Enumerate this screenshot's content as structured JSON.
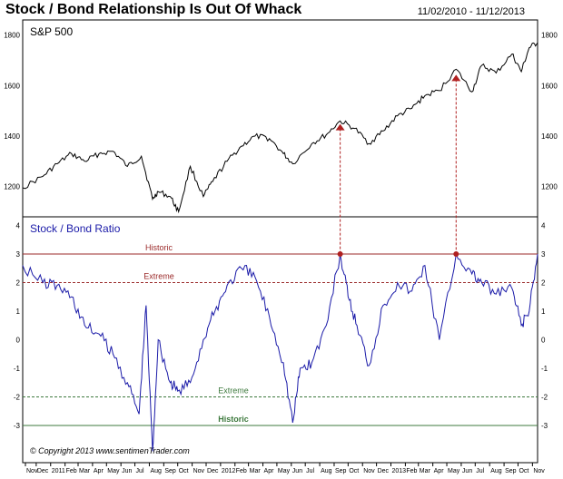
{
  "header": {
    "title": "Stock / Bond Relationship Is Out Of Whack",
    "date_range": "11/02/2010 - 11/12/2013"
  },
  "copyright": "© Copyright 2013   www.sentimenTrader.com",
  "colors": {
    "sp500_line": "#000000",
    "ratio_line": "#1a1aa8",
    "historic_upper": "#9b2a2a",
    "extreme_upper": "#9b2a2a",
    "historic_lower": "#3e7a3e",
    "extreme_lower": "#3e7a3e",
    "markers": "#b02020"
  },
  "chart_data": [
    {
      "type": "line",
      "panel": "top",
      "title": "S&P 500",
      "ylim": [
        1080,
        1860
      ],
      "yticks": [
        1200,
        1400,
        1600,
        1800
      ],
      "x_range": [
        "2010-11-02",
        "2013-11-12"
      ],
      "x": [
        "2010-11-02",
        "2010-12-15",
        "2011-01-15",
        "2011-02-15",
        "2011-03-15",
        "2011-04-15",
        "2011-05-15",
        "2011-06-15",
        "2011-07-15",
        "2011-08-08",
        "2011-08-20",
        "2011-09-15",
        "2011-10-03",
        "2011-10-28",
        "2011-11-25",
        "2011-12-15",
        "2012-01-15",
        "2012-02-15",
        "2012-03-15",
        "2012-04-15",
        "2012-05-15",
        "2012-06-04",
        "2012-07-15",
        "2012-08-15",
        "2012-09-14",
        "2012-10-15",
        "2012-11-15",
        "2012-12-15",
        "2013-01-15",
        "2013-02-15",
        "2013-03-15",
        "2013-04-15",
        "2013-05-21",
        "2013-06-24",
        "2013-07-15",
        "2013-08-15",
        "2013-09-18",
        "2013-10-08",
        "2013-10-25",
        "2013-11-12"
      ],
      "series": [
        {
          "values": [
            1195,
            1240,
            1290,
            1330,
            1300,
            1330,
            1340,
            1280,
            1320,
            1150,
            1180,
            1160,
            1100,
            1280,
            1160,
            1220,
            1300,
            1360,
            1400,
            1390,
            1330,
            1290,
            1370,
            1405,
            1460,
            1430,
            1370,
            1420,
            1480,
            1510,
            1560,
            1580,
            1665,
            1575,
            1680,
            1650,
            1725,
            1655,
            1750,
            1770
          ]
        }
      ],
      "markers": [
        {
          "x": "2012-09-14",
          "y": 1430
        },
        {
          "x": "2013-05-21",
          "y": 1625
        }
      ]
    },
    {
      "type": "line",
      "panel": "bottom",
      "title": "Stock / Bond Ratio",
      "ylim": [
        -4.3,
        4.3
      ],
      "yticks": [
        4,
        3,
        2,
        1,
        0,
        -1,
        -2,
        -3
      ],
      "x_range": [
        "2010-11-02",
        "2013-11-12"
      ],
      "x_tick_labels": [
        "Nov",
        "Dec",
        "2011",
        "Feb",
        "Mar",
        "Apr",
        "May",
        "Jun",
        "Jul",
        "Aug",
        "Sep",
        "Oct",
        "Nov",
        "Dec",
        "2012",
        "Feb",
        "Mar",
        "Apr",
        "May",
        "Jun",
        "Jul",
        "Aug",
        "Sep",
        "Oct",
        "Nov",
        "Dec",
        "2013",
        "Feb",
        "Mar",
        "Apr",
        "May",
        "Jun",
        "Jul",
        "Aug",
        "Sep",
        "Oct",
        "Nov"
      ],
      "x": [
        "2010-11-02",
        "2010-12-15",
        "2011-01-15",
        "2011-02-15",
        "2011-03-15",
        "2011-04-15",
        "2011-05-15",
        "2011-06-15",
        "2011-07-10",
        "2011-07-25",
        "2011-08-08",
        "2011-08-20",
        "2011-09-15",
        "2011-10-01",
        "2011-10-28",
        "2011-11-25",
        "2011-12-20",
        "2012-01-15",
        "2012-02-15",
        "2012-03-15",
        "2012-04-15",
        "2012-05-15",
        "2012-06-04",
        "2012-06-20",
        "2012-07-15",
        "2012-08-15",
        "2012-09-14",
        "2012-10-01",
        "2012-10-20",
        "2012-11-15",
        "2012-12-15",
        "2013-01-15",
        "2013-02-15",
        "2013-03-15",
        "2013-04-15",
        "2013-05-21",
        "2013-06-24",
        "2013-07-15",
        "2013-08-15",
        "2013-09-18",
        "2013-10-08",
        "2013-10-25",
        "2013-11-12"
      ],
      "series": [
        {
          "values": [
            2.6,
            2.0,
            1.9,
            1.5,
            0.5,
            0.2,
            -0.5,
            -1.5,
            -2.6,
            1.2,
            -3.9,
            0.0,
            -1.5,
            -1.8,
            -1.5,
            0.0,
            1.0,
            1.9,
            2.5,
            2.2,
            0.8,
            -0.8,
            -2.9,
            -1.0,
            -0.8,
            0.5,
            3.0,
            1.5,
            0.5,
            -0.9,
            1.2,
            2.0,
            1.7,
            2.6,
            0.0,
            3.0,
            2.3,
            2.0,
            1.6,
            1.8,
            0.5,
            1.0,
            3.0
          ]
        }
      ],
      "levels": [
        {
          "value": 3,
          "label": "Historic",
          "style": "solid",
          "color": "#9b2a2a"
        },
        {
          "value": 2,
          "label": "Extreme",
          "style": "dashed",
          "color": "#9b2a2a"
        },
        {
          "value": -2,
          "label": "Extreme",
          "style": "dashed",
          "color": "#3e7a3e"
        },
        {
          "value": -3,
          "label": "Historic",
          "style": "solid",
          "color": "#3e7a3e"
        }
      ],
      "markers": [
        {
          "x": "2012-09-14",
          "y": 3.0
        },
        {
          "x": "2013-05-21",
          "y": 3.0
        }
      ]
    }
  ]
}
